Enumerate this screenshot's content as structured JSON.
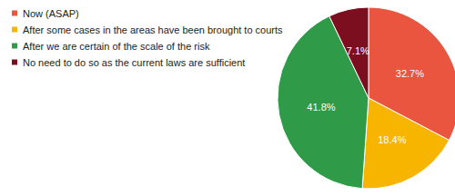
{
  "chart_data": {
    "type": "pie",
    "categories": [
      "Now (ASAP)",
      "After some cases in the areas have been brought to courts",
      "After we are certain of the scale of the risk",
      "No need to do so as the current laws are sufficient"
    ],
    "values": [
      32.7,
      18.4,
      41.8,
      7.1
    ],
    "value_labels": [
      "32.7%",
      "18.4%",
      "41.8%",
      "7.1%"
    ],
    "colors": [
      "#e9553f",
      "#f7b500",
      "#2f9a47",
      "#7b0f1f"
    ],
    "data_labels": true,
    "legend": "top-left"
  }
}
